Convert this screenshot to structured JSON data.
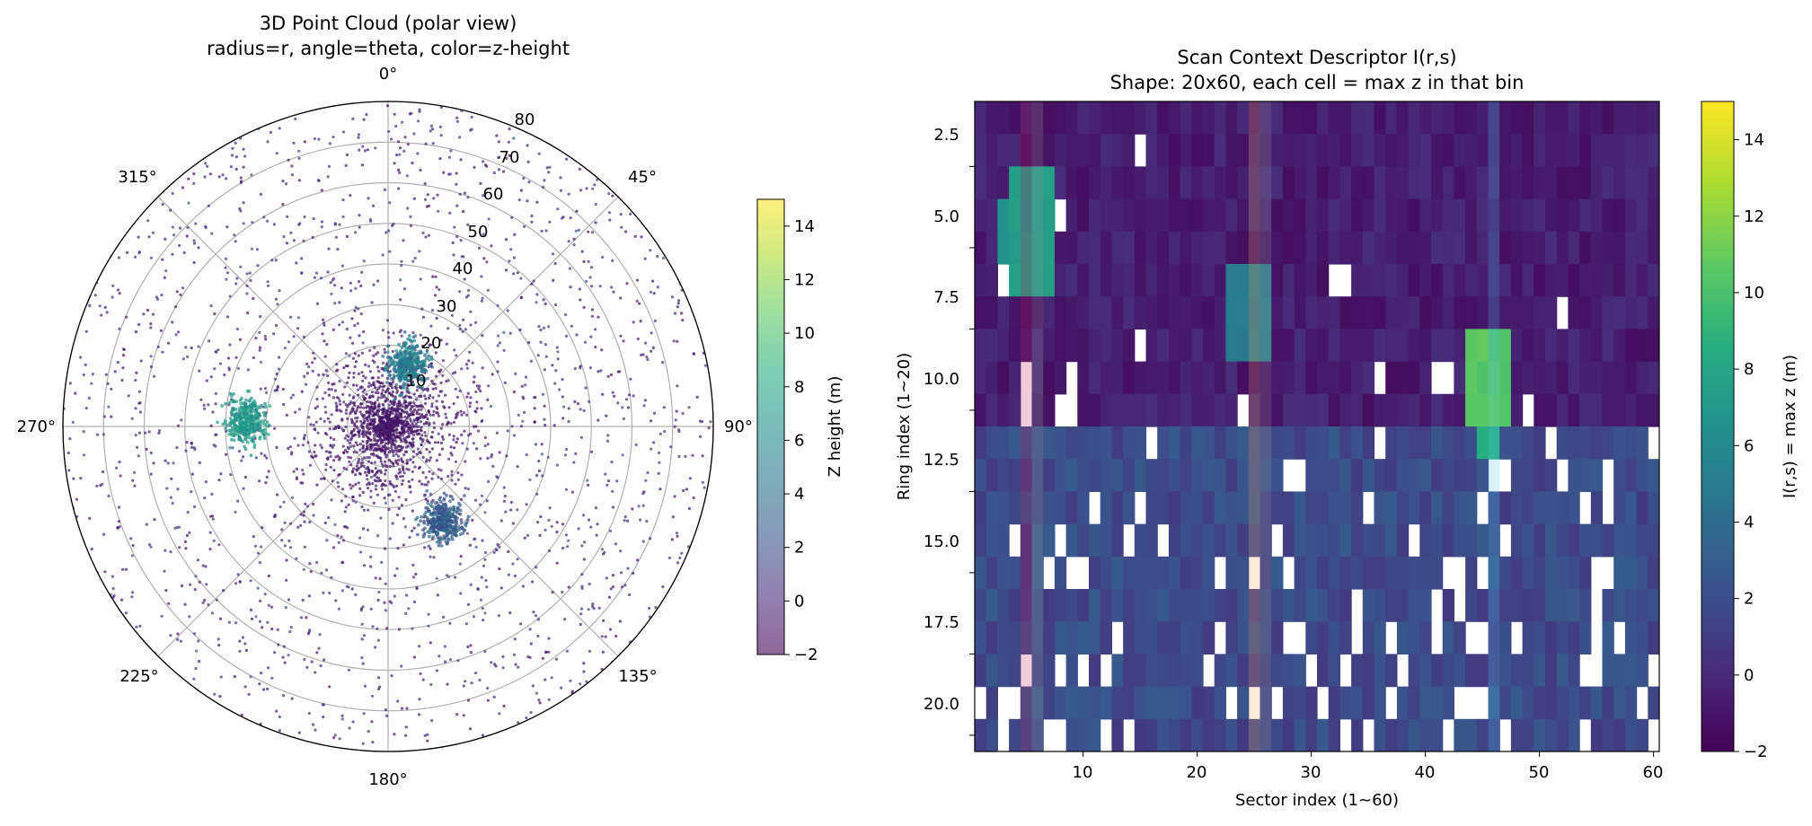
{
  "chart_data": [
    {
      "type": "scatter",
      "projection": "polar",
      "title": "3D Point Cloud (polar view)",
      "subtitle": "radius=r, angle=theta, color=z-height",
      "angular_ticks": [
        "0°",
        "45°",
        "90°",
        "135°",
        "180°",
        "225°",
        "270°",
        "315°"
      ],
      "radial_ticks": [
        "10",
        "20",
        "30",
        "40",
        "50",
        "60",
        "70",
        "80"
      ],
      "radial_values": [
        10,
        20,
        30,
        40,
        50,
        60,
        70,
        80
      ],
      "rlim": [
        0,
        80
      ],
      "theta_zero": "N",
      "theta_direction": "clockwise",
      "grid": true,
      "colormap": "viridis",
      "colorbar": {
        "label": "Z height (m)",
        "ticks": [
          "14",
          "12",
          "10",
          "8",
          "6",
          "4",
          "2",
          "0",
          "−2"
        ],
        "tick_values": [
          14,
          12,
          10,
          8,
          6,
          4,
          2,
          0,
          -2
        ],
        "range": [
          -2,
          15
        ]
      },
      "clusters": [
        {
          "theta_deg": 18,
          "r": 16,
          "spread": 3,
          "z": 5
        },
        {
          "theta_deg": 272,
          "r": 35,
          "spread": 3,
          "z": 7
        },
        {
          "theta_deg": 150,
          "r": 27,
          "spread": 3,
          "z": 3
        }
      ]
    },
    {
      "type": "heatmap",
      "title": "Scan Context Descriptor I(r,s)",
      "subtitle": "Shape: 20x60, each cell = max z in that bin",
      "xlabel": "Sector index (1~60)",
      "ylabel": "Ring index (1~20)",
      "xticks": [
        "10",
        "20",
        "30",
        "40",
        "50",
        "60"
      ],
      "xtick_values": [
        10,
        20,
        30,
        40,
        50,
        60
      ],
      "yticks": [
        "2.5",
        "5.0",
        "7.5",
        "10.0",
        "12.5",
        "15.0",
        "17.5",
        "20.0"
      ],
      "ytick_values": [
        2.5,
        5.0,
        7.5,
        10.0,
        12.5,
        15.0,
        17.5,
        20.0
      ],
      "xlim": [
        0.5,
        60.5
      ],
      "ylim": [
        20.5,
        0.5
      ],
      "rings": 20,
      "sectors": 60,
      "colormap": "viridis",
      "colorbar": {
        "label": "I(r,s) = max z (m)",
        "ticks": [
          "14",
          "12",
          "10",
          "8",
          "6",
          "4",
          "2",
          "0",
          "−2"
        ],
        "tick_values": [
          14,
          12,
          10,
          8,
          6,
          4,
          2,
          0,
          -2
        ],
        "range": [
          -2,
          15
        ]
      },
      "blocks": [
        {
          "sectors": [
            4,
            7
          ],
          "rings": [
            3,
            6
          ],
          "z": 7.5
        },
        {
          "sectors": [
            3,
            3
          ],
          "rings": [
            4,
            5
          ],
          "z": 7
        },
        {
          "sectors": [
            23,
            26
          ],
          "rings": [
            6,
            8
          ],
          "z": 5
        },
        {
          "sectors": [
            44,
            47
          ],
          "rings": [
            8,
            10
          ],
          "z": 10.5
        },
        {
          "sectors": [
            45,
            46
          ],
          "rings": [
            11,
            11
          ],
          "z": 8.5
        }
      ],
      "highlight_columns": [
        {
          "sector": 5,
          "color": "#c2185b"
        },
        {
          "sector": 6,
          "color": "#9e9e9e"
        },
        {
          "sector": 25,
          "color": "#f4a460"
        },
        {
          "sector": 26,
          "color": "#9e9e9e"
        },
        {
          "sector": 46,
          "color": "#4fc3f7"
        }
      ]
    }
  ]
}
